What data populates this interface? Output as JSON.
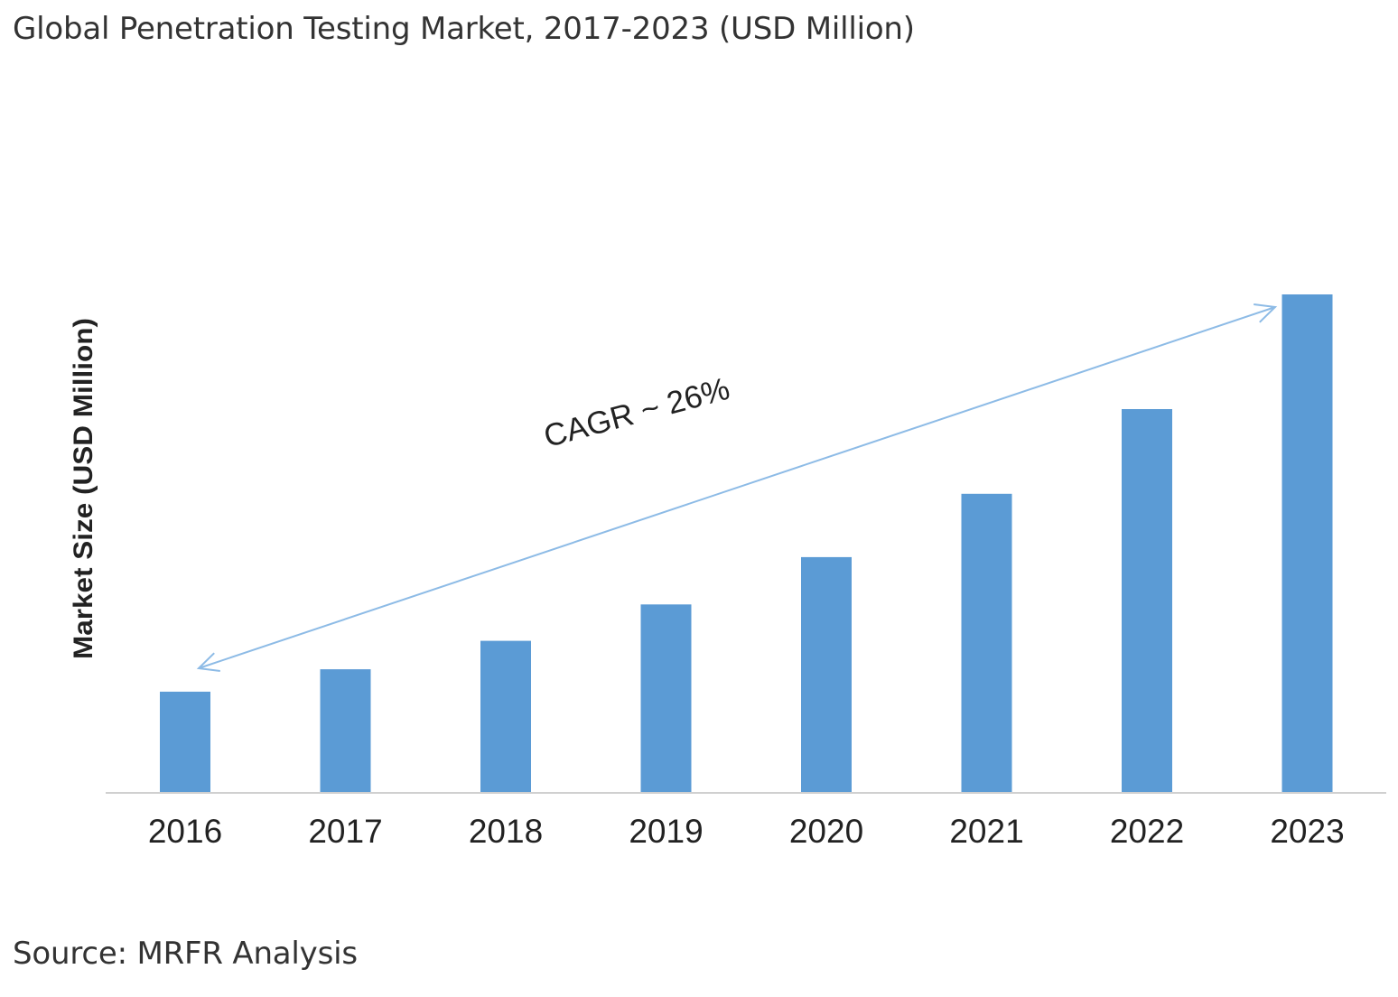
{
  "header": {
    "title": "Global Penetration Testing Market, 2017-2023 (USD Million)"
  },
  "footer": {
    "source": "Source: MRFR Analysis"
  },
  "colors": {
    "bar": "#5b9bd5",
    "arrow": "#8dbbe6",
    "axis": "#d0d0d0",
    "text": "#222222",
    "heading": "#333333"
  },
  "chart_data": {
    "type": "bar",
    "title": "Global Penetration Testing Market, 2017-2023 (USD Million)",
    "xlabel": "",
    "ylabel": "Market Size (USD Million)",
    "categories": [
      "2016",
      "2017",
      "2018",
      "2019",
      "2020",
      "2021",
      "2022",
      "2023"
    ],
    "series": [
      {
        "name": "Market Size",
        "values": [
          20.3,
          24.8,
          30.5,
          37.8,
          47.3,
          60.0,
          77.0,
          100.0
        ]
      }
    ],
    "ylim": [
      0,
      100
    ],
    "y_tick_labels_shown": false,
    "grid": false,
    "legend": "none",
    "annotations": [
      {
        "text": "CAGR ~ 26%",
        "type": "double-arrow",
        "from_category": "2016",
        "to_category": "2023"
      }
    ]
  }
}
